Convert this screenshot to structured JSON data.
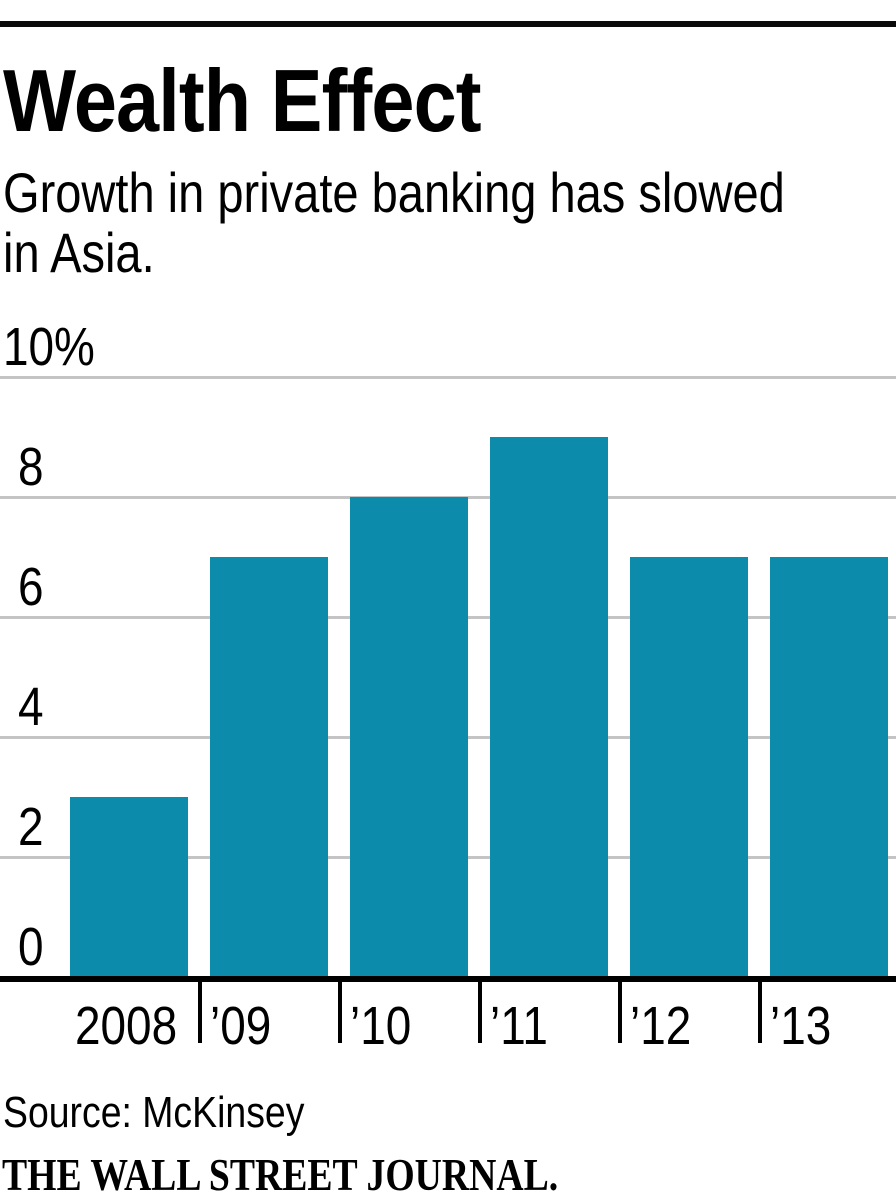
{
  "header": {
    "subtitle_line1": "Growth in private banking has slowed",
    "subtitle_line2": "in Asia."
  },
  "chart_data": {
    "type": "bar",
    "title": "Wealth Effect",
    "subtitle": "Growth in private banking has slowed in Asia.",
    "categories": [
      "2008",
      "’09",
      "’10",
      "’11",
      "’12",
      "’13"
    ],
    "values": [
      3,
      7,
      8,
      9,
      7,
      7
    ],
    "unit": "%",
    "xlabel": "",
    "ylabel": "",
    "ylim": [
      0,
      10
    ],
    "y_ticks": [
      0,
      2,
      4,
      6,
      8,
      10
    ],
    "y_tick_labels": [
      "0",
      "2",
      "4",
      "6",
      "8",
      "10%"
    ],
    "grid": "horizontal",
    "legend": "none",
    "bar_color": "#0c8bab",
    "grid_color": "#c4c4c4",
    "axis_color": "#000000"
  },
  "footer": {
    "source": "Source: McKinsey",
    "brand": "THE WALL STREET JOURNAL."
  }
}
